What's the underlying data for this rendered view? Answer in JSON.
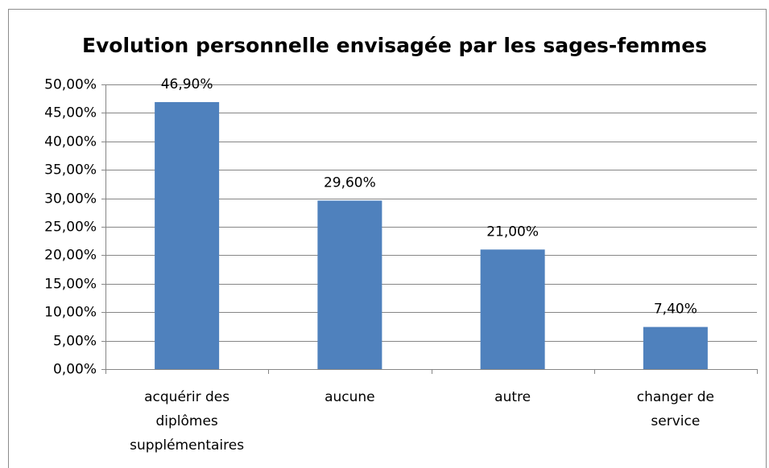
{
  "chart_data": {
    "type": "bar",
    "title": "Evolution personnelle envisagée par les sages-femmes",
    "categories": [
      "acquérir des diplômes supplémentaires",
      "aucune",
      "autre",
      "changer de service"
    ],
    "values": [
      46.9,
      29.6,
      21,
      7.4
    ],
    "value_labels": [
      "46,90%",
      "29,60%",
      "21,00%",
      "7,40%"
    ],
    "color": "#4f81bd",
    "ylim": [
      0,
      50
    ],
    "yticks": [
      {
        "value": 0,
        "label": "0,00%"
      },
      {
        "value": 5,
        "label": "5,00%"
      },
      {
        "value": 10,
        "label": "10,00%"
      },
      {
        "value": 15,
        "label": "15,00%"
      },
      {
        "value": 20,
        "label": "20,00%"
      },
      {
        "value": 25,
        "label": "25,00%"
      },
      {
        "value": 30,
        "label": "30,00%"
      },
      {
        "value": 35,
        "label": "35,00%"
      },
      {
        "value": 40,
        "label": "40,00%"
      },
      {
        "value": 45,
        "label": "45,00%"
      },
      {
        "value": 50,
        "label": "50,00%"
      }
    ],
    "grid": true
  }
}
